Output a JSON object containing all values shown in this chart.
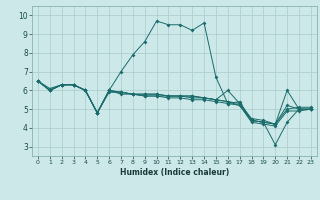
{
  "xlabel": "Humidex (Indice chaleur)",
  "background_color": "#cce8e8",
  "grid_color": "#aacccc",
  "line_color": "#1a6b6b",
  "xlim": [
    -0.5,
    23.5
  ],
  "ylim": [
    2.5,
    10.5
  ],
  "xticks": [
    0,
    1,
    2,
    3,
    4,
    5,
    6,
    7,
    8,
    9,
    10,
    11,
    12,
    13,
    14,
    15,
    16,
    17,
    18,
    19,
    20,
    21,
    22,
    23
  ],
  "yticks": [
    3,
    4,
    5,
    6,
    7,
    8,
    9,
    10
  ],
  "series": [
    [
      6.5,
      6.0,
      6.3,
      6.3,
      6.0,
      4.8,
      6.0,
      5.8,
      5.8,
      5.7,
      5.7,
      5.7,
      5.7,
      5.6,
      5.6,
      5.5,
      5.4,
      5.3,
      4.4,
      4.3,
      4.2,
      5.0,
      5.1,
      5.1
    ],
    [
      6.5,
      6.1,
      6.3,
      6.3,
      6.0,
      4.8,
      6.0,
      5.9,
      5.8,
      5.8,
      5.8,
      5.7,
      5.7,
      5.7,
      5.6,
      5.5,
      5.4,
      5.2,
      4.4,
      4.3,
      4.2,
      5.2,
      5.0,
      5.0
    ],
    [
      6.5,
      6.0,
      6.3,
      6.3,
      6.0,
      4.8,
      6.0,
      7.0,
      7.9,
      8.6,
      9.7,
      9.5,
      9.5,
      9.2,
      9.6,
      6.7,
      5.3,
      5.4,
      4.4,
      4.3,
      3.1,
      4.3,
      5.0,
      5.0
    ],
    [
      6.5,
      6.0,
      6.3,
      6.3,
      6.0,
      4.8,
      6.0,
      5.9,
      5.8,
      5.8,
      5.8,
      5.7,
      5.7,
      5.7,
      5.6,
      5.5,
      6.0,
      5.3,
      4.5,
      4.4,
      4.2,
      6.0,
      5.0,
      5.0
    ],
    [
      6.5,
      6.0,
      6.3,
      6.3,
      6.0,
      4.8,
      5.9,
      5.9,
      5.8,
      5.7,
      5.7,
      5.6,
      5.6,
      5.5,
      5.5,
      5.4,
      5.3,
      5.2,
      4.3,
      4.2,
      4.1,
      4.9,
      4.9,
      5.0
    ]
  ]
}
